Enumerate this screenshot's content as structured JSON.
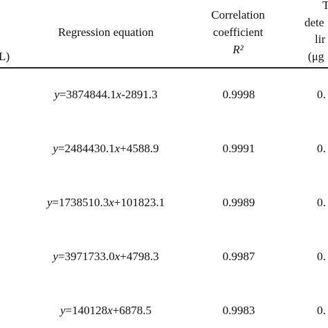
{
  "table": {
    "header": {
      "left": "L)",
      "equation": "Regression equation",
      "correlation": [
        "Correlation",
        "coefficient",
        "R²"
      ],
      "right": [
        "T",
        "dete",
        "lir",
        "(μg"
      ]
    },
    "rows": [
      [
        "y=3874844.1x-2891.3",
        "0.9998",
        "0."
      ],
      [
        "y=2484430.1x+4588.9",
        "0.9991",
        "0."
      ],
      [
        "y=1738510.3x+101823.1",
        "0.9989",
        "0."
      ],
      [
        "y=3971733.0x+4798.3",
        "0.9987",
        "0."
      ],
      [
        "y=140128x+6878.5",
        "0.9983",
        "0."
      ]
    ]
  }
}
